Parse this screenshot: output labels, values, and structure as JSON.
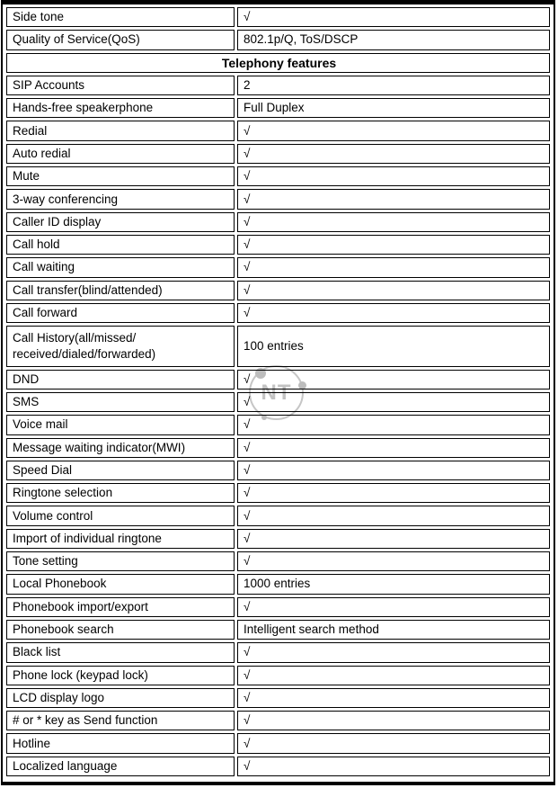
{
  "watermark": {
    "text": "NT",
    "color": "#c3c3c3"
  },
  "colors": {
    "border": "#000000",
    "background": "#ffffff"
  },
  "table": {
    "check_symbol": "√",
    "rows": [
      {
        "label": "Side tone",
        "value": "√"
      },
      {
        "label": "Quality of Service(QoS)",
        "value": "802.1p/Q, ToS/DSCP"
      },
      {
        "section": "Telephony features"
      },
      {
        "label": "SIP Accounts",
        "value": "2"
      },
      {
        "label": "Hands-free speakerphone",
        "value": "Full Duplex"
      },
      {
        "label": "Redial",
        "value": "√"
      },
      {
        "label": "Auto redial",
        "value": "√"
      },
      {
        "label": "Mute",
        "value": "√"
      },
      {
        "label": "3-way conferencing",
        "value": "√"
      },
      {
        "label": "Caller ID display",
        "value": "√"
      },
      {
        "label": "Call hold",
        "value": "√"
      },
      {
        "label": "Call waiting",
        "value": "√"
      },
      {
        "label": "Call transfer(blind/attended)",
        "value": "√"
      },
      {
        "label": "Call forward",
        "value": "√"
      },
      {
        "label": "Call History(all/missed/\nreceived/dialed/forwarded)",
        "value": "100 entries",
        "tall": true
      },
      {
        "label": "DND",
        "value": "√"
      },
      {
        "label": "SMS",
        "value": "√"
      },
      {
        "label": "Voice mail",
        "value": "√"
      },
      {
        "label": "Message waiting indicator(MWI)",
        "value": "√"
      },
      {
        "label": "Speed Dial",
        "value": "√"
      },
      {
        "label": "Ringtone selection",
        "value": "√"
      },
      {
        "label": "Volume control",
        "value": "√"
      },
      {
        "label": "Import of individual ringtone",
        "value": "√"
      },
      {
        "label": "Tone setting",
        "value": "√"
      },
      {
        "label": "Local Phonebook",
        "value": "1000 entries"
      },
      {
        "label": "Phonebook import/export",
        "value": "√"
      },
      {
        "label": "Phonebook search",
        "value": " Intelligent search method"
      },
      {
        "label": "Black list",
        "value": "√"
      },
      {
        "label": "Phone lock (keypad lock)",
        "value": "√"
      },
      {
        "label": "LCD display logo",
        "value": "√"
      },
      {
        "label": "# or * key as Send function",
        "value": "√"
      },
      {
        "label": "Hotline",
        "value": "√"
      },
      {
        "label": "Localized language",
        "value": "√"
      }
    ]
  }
}
